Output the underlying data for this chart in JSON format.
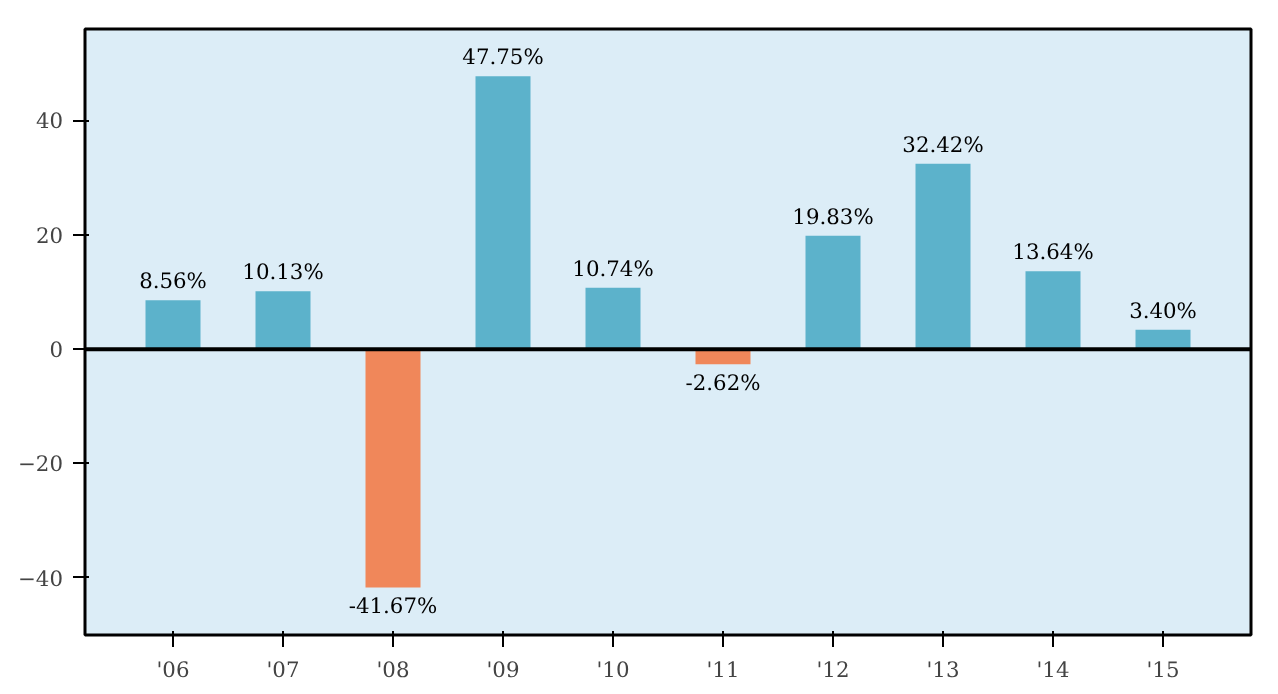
{
  "chart_data": {
    "type": "bar",
    "categories": [
      "'06",
      "'07",
      "'08",
      "'09",
      "'10",
      "'11",
      "'12",
      "'13",
      "'14",
      "'15"
    ],
    "values": [
      8.56,
      10.13,
      -41.67,
      47.75,
      10.74,
      -2.62,
      19.83,
      32.42,
      13.64,
      3.4
    ],
    "value_labels": [
      "8.56%",
      "10.13%",
      "-41.67%",
      "47.75%",
      "10.74%",
      "-2.62%",
      "19.83%",
      "32.42%",
      "13.64%",
      "3.40%"
    ],
    "colors": [
      "#5cb2cb",
      "#5cb2cb",
      "#f0875a",
      "#5cb2cb",
      "#5cb2cb",
      "#f0875a",
      "#5cb2cb",
      "#5cb2cb",
      "#5cb2cb",
      "#5cb2cb"
    ],
    "ylim": [
      -50,
      56
    ],
    "yticks": [
      {
        "value": -40,
        "label": "−40"
      },
      {
        "value": -20,
        "label": "−20"
      },
      0,
      20,
      40
    ],
    "ref_lines": [
      {
        "axis": "y",
        "value": 0,
        "color": "#000000"
      }
    ],
    "grid": false
  }
}
